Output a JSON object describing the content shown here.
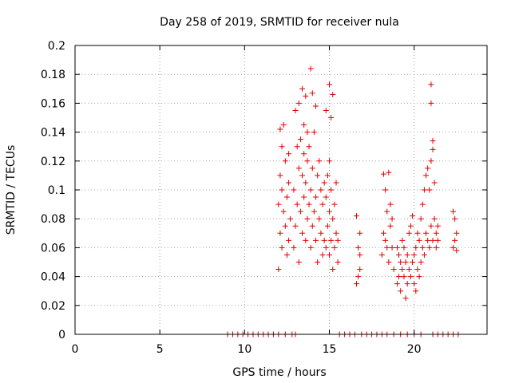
{
  "chart_data": {
    "type": "scatter",
    "title": "Day 258 of 2019, SRMTID for receiver nula",
    "xlabel": "GPS time / hours",
    "ylabel": "SRMTID / TECUs",
    "xlim": [
      0,
      24.3
    ],
    "ylim": [
      0,
      0.2
    ],
    "xticks": [
      0,
      5,
      10,
      15,
      20
    ],
    "xtick_labels": [
      "0",
      "5",
      "10",
      "15",
      "20"
    ],
    "yticks": [
      0,
      0.02,
      0.04,
      0.06,
      0.08,
      0.1,
      0.12,
      0.14,
      0.16,
      0.18,
      0.2
    ],
    "ytick_labels": [
      "0",
      "0.02",
      "0.04",
      "0.06",
      "0.08",
      "0.1",
      "0.12",
      "0.14",
      "0.16",
      "0.18",
      "0.2"
    ],
    "grid": true,
    "marker": "+",
    "marker_color": "#e00000",
    "series": [
      {
        "name": "SRMTID",
        "x": [
          12.0,
          12.0,
          12.1,
          12.1,
          12.1,
          12.2,
          12.2,
          12.2,
          12.3,
          12.3,
          12.4,
          12.4,
          12.5,
          12.5,
          12.6,
          12.6,
          12.6,
          12.7,
          12.9,
          12.9,
          13.0,
          13.0,
          13.1,
          13.1,
          13.2,
          13.2,
          13.2,
          13.3,
          13.3,
          13.4,
          13.4,
          13.5,
          13.5,
          13.5,
          13.6,
          13.6,
          13.7,
          13.7,
          13.7,
          13.8,
          13.8,
          13.9,
          13.9,
          14.0,
          14.0,
          14.1,
          14.1,
          14.2,
          14.2,
          14.3,
          14.3,
          14.4,
          14.4,
          14.5,
          14.5,
          14.6,
          14.6,
          14.7,
          14.7,
          14.8,
          14.8,
          14.9,
          14.9,
          15.0,
          15.0,
          15.0,
          15.1,
          15.1,
          15.2,
          15.2,
          15.3,
          15.3,
          15.4,
          15.4,
          15.5,
          15.5,
          13.4,
          13.6,
          13.9,
          14.0,
          15.0,
          15.1,
          14.2,
          14.8,
          15.2,
          16.6,
          16.6,
          16.7,
          16.7,
          16.8,
          16.8,
          16.8,
          18.1,
          18.2,
          18.2,
          18.3,
          18.3,
          18.4,
          18.4,
          18.5,
          18.5,
          18.6,
          18.6,
          18.7,
          18.7,
          18.8,
          19.0,
          19.0,
          19.1,
          19.1,
          19.2,
          19.2,
          19.3,
          19.3,
          19.4,
          19.4,
          19.5,
          19.5,
          19.6,
          19.6,
          19.7,
          19.7,
          19.8,
          19.8,
          19.9,
          19.9,
          20.0,
          20.0,
          20.1,
          20.1,
          20.2,
          20.2,
          20.3,
          20.3,
          20.4,
          20.4,
          20.5,
          20.5,
          20.6,
          20.6,
          20.7,
          20.7,
          20.8,
          20.8,
          20.9,
          20.9,
          21.0,
          21.0,
          21.1,
          21.1,
          21.2,
          21.2,
          21.3,
          21.3,
          21.4,
          21.4,
          21.0,
          21.0,
          21.1,
          22.3,
          22.3,
          22.4,
          22.4,
          22.5,
          22.5,
          9.0,
          9.3,
          9.6,
          9.9,
          10.2,
          10.5,
          10.8,
          11.1,
          11.4,
          11.7,
          12.0,
          12.4,
          12.8,
          13.0,
          15.6,
          15.9,
          16.2,
          16.5,
          16.9,
          17.2,
          17.5,
          17.8,
          18.1,
          18.4,
          18.8,
          19.2,
          19.6,
          20.0,
          20.4,
          21.1,
          21.4,
          21.7,
          22.0,
          22.3,
          22.6
        ],
        "y": [
          0.045,
          0.09,
          0.07,
          0.11,
          0.142,
          0.06,
          0.1,
          0.13,
          0.085,
          0.145,
          0.075,
          0.12,
          0.055,
          0.095,
          0.065,
          0.105,
          0.125,
          0.08,
          0.06,
          0.1,
          0.075,
          0.155,
          0.09,
          0.13,
          0.05,
          0.115,
          0.16,
          0.085,
          0.135,
          0.07,
          0.11,
          0.095,
          0.125,
          0.145,
          0.065,
          0.105,
          0.08,
          0.12,
          0.14,
          0.09,
          0.13,
          0.06,
          0.1,
          0.075,
          0.115,
          0.085,
          0.14,
          0.065,
          0.095,
          0.05,
          0.11,
          0.08,
          0.12,
          0.07,
          0.1,
          0.055,
          0.09,
          0.065,
          0.105,
          0.06,
          0.095,
          0.075,
          0.11,
          0.055,
          0.085,
          0.12,
          0.065,
          0.1,
          0.045,
          0.08,
          0.06,
          0.09,
          0.07,
          0.105,
          0.05,
          0.065,
          0.17,
          0.165,
          0.184,
          0.167,
          0.173,
          0.15,
          0.158,
          0.155,
          0.166,
          0.035,
          0.082,
          0.04,
          0.06,
          0.045,
          0.055,
          0.07,
          0.055,
          0.07,
          0.111,
          0.065,
          0.1,
          0.06,
          0.085,
          0.05,
          0.112,
          0.075,
          0.09,
          0.06,
          0.08,
          0.045,
          0.035,
          0.06,
          0.04,
          0.055,
          0.03,
          0.05,
          0.045,
          0.065,
          0.04,
          0.06,
          0.025,
          0.05,
          0.035,
          0.055,
          0.045,
          0.07,
          0.04,
          0.075,
          0.05,
          0.082,
          0.035,
          0.055,
          0.03,
          0.06,
          0.045,
          0.07,
          0.04,
          0.065,
          0.05,
          0.08,
          0.06,
          0.09,
          0.055,
          0.1,
          0.07,
          0.11,
          0.065,
          0.115,
          0.06,
          0.1,
          0.075,
          0.12,
          0.065,
          0.134,
          0.08,
          0.105,
          0.07,
          0.06,
          0.065,
          0.075,
          0.16,
          0.173,
          0.128,
          0.06,
          0.085,
          0.065,
          0.08,
          0.07,
          0.058,
          0.0,
          0.0,
          0.0,
          0.0,
          0.0,
          0.0,
          0.0,
          0.0,
          0.0,
          0.0,
          0.0,
          0.0,
          0.0,
          0.0,
          0.0,
          0.0,
          0.0,
          0.0,
          0.0,
          0.0,
          0.0,
          0.0,
          0.0,
          0.0,
          0.0,
          0.0,
          0.0,
          0.0,
          0.0,
          0.0,
          0.0,
          0.0,
          0.0,
          0.0,
          0.0
        ]
      }
    ]
  }
}
